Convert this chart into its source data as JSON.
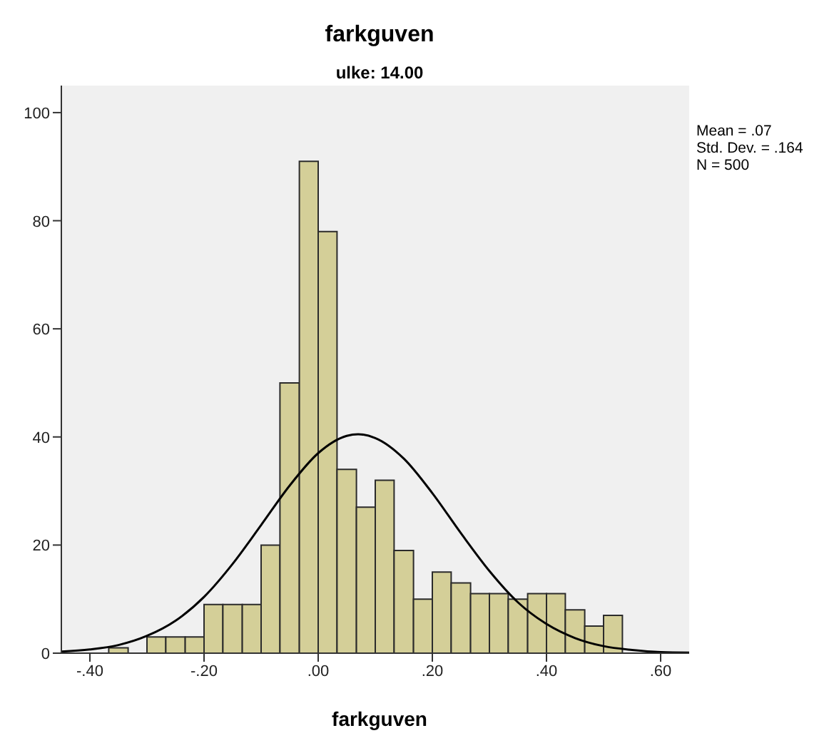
{
  "chart_data": {
    "type": "histogram",
    "title": "farkguven",
    "subtitle": "ulke: 14.00",
    "xlabel": "farkguven",
    "annotations": [
      "Mean = .07\nStd. Dev. = .164\nN = 500"
    ],
    "bins": [
      -0.367,
      -0.333,
      -0.3,
      -0.267,
      -0.233,
      -0.2,
      -0.167,
      -0.133,
      -0.1,
      -0.067,
      -0.033,
      0,
      0.033,
      0.067,
      0.1,
      0.133,
      0.167,
      0.2,
      0.233,
      0.267,
      0.3,
      0.333,
      0.367,
      0.4,
      0.433,
      0.467,
      0.5,
      0.533
    ],
    "values": [
      1,
      0,
      3,
      3,
      3,
      9,
      9,
      9,
      20,
      50,
      91,
      78,
      34,
      27,
      32,
      19,
      10,
      15,
      13,
      11,
      11,
      10,
      11,
      11,
      8,
      5,
      7
    ],
    "color": "#d4cf98",
    "series": [
      {
        "type": "line",
        "color": "#000000",
        "x": [
          -0.45,
          -0.4,
          -0.35,
          -0.3,
          -0.25,
          -0.2,
          -0.15,
          -0.1,
          -0.05,
          0,
          0.05,
          0.07,
          0.1,
          0.15,
          0.2,
          0.25,
          0.3,
          0.35,
          0.4,
          0.45,
          0.5,
          0.55,
          0.6,
          0.65
        ],
        "values": [
          0.3,
          0.7,
          1.5,
          3.2,
          6.0,
          10.4,
          16.5,
          23.7,
          31.0,
          37.0,
          40.2,
          40.5,
          39.8,
          36.0,
          29.6,
          22.2,
          15.2,
          9.4,
          5.4,
          2.8,
          1.3,
          0.6,
          0.2,
          0.1
        ]
      }
    ],
    "xlim": [
      -0.45,
      0.65
    ],
    "ylim": [
      0,
      105
    ],
    "xticks": [
      {
        "value": -0.4,
        "label": "-.40"
      },
      {
        "value": -0.2,
        "label": "-.20"
      },
      {
        "value": 0,
        "label": ".00"
      },
      {
        "value": 0.2,
        "label": ".20"
      },
      {
        "value": 0.4,
        "label": ".40"
      },
      {
        "value": 0.6,
        "label": ".60"
      }
    ],
    "yticks": [
      0,
      20,
      40,
      60,
      80,
      100
    ]
  }
}
